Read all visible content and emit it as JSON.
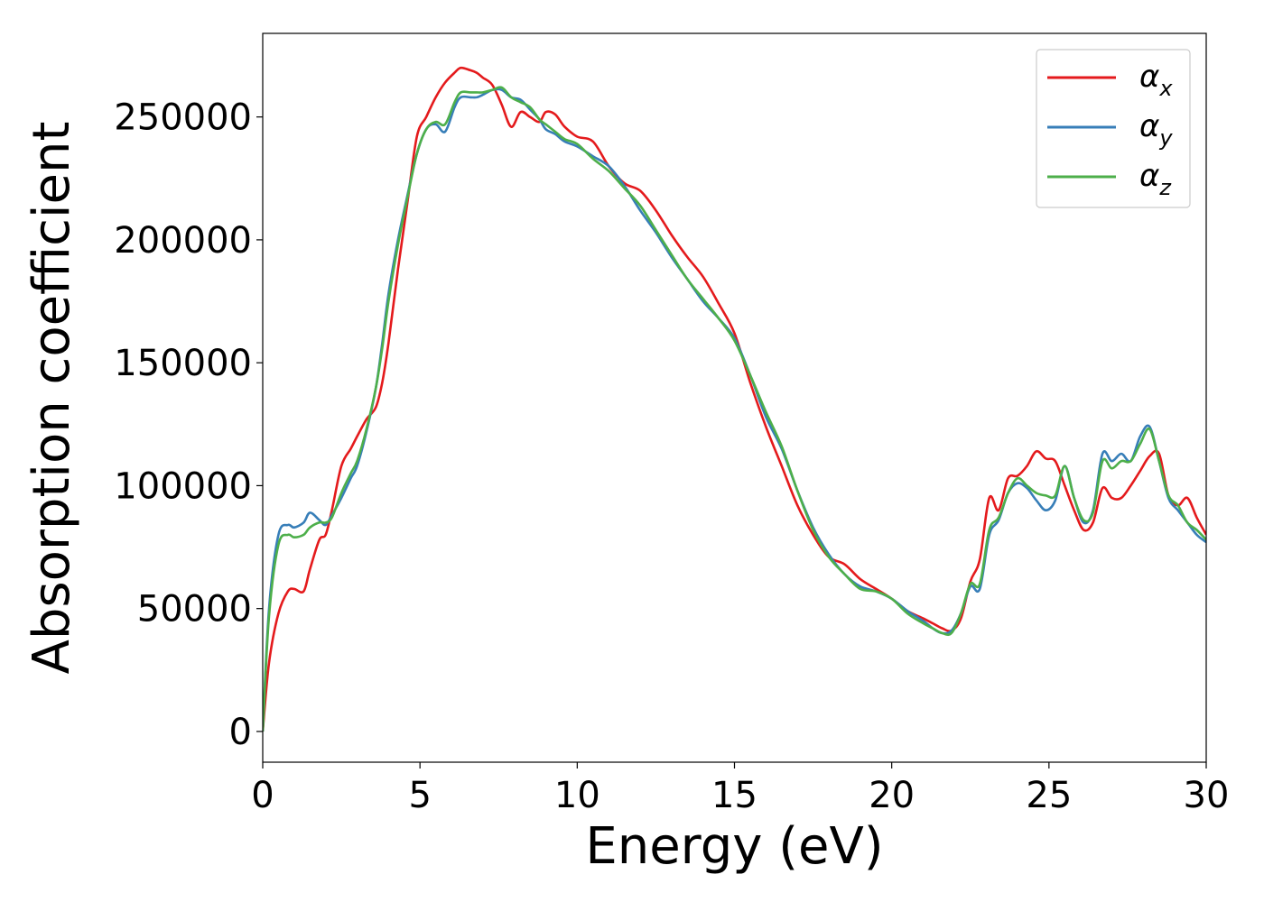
{
  "chart_data": {
    "type": "line",
    "title": "",
    "xlabel": "Energy (eV)",
    "ylabel": "Absorption coefficient",
    "xlim": [
      0,
      30
    ],
    "ylim": [
      -12500,
      284000
    ],
    "xticks": [
      {
        "value": 0,
        "label": "0"
      },
      {
        "value": 5,
        "label": "5"
      },
      {
        "value": 10,
        "label": "10"
      },
      {
        "value": 15,
        "label": "15"
      },
      {
        "value": 20,
        "label": "20"
      },
      {
        "value": 25,
        "label": "25"
      },
      {
        "value": 30,
        "label": "30"
      }
    ],
    "yticks": [
      {
        "value": 0,
        "label": "0"
      },
      {
        "value": 50000,
        "label": "50000"
      },
      {
        "value": 100000,
        "label": "100000"
      },
      {
        "value": 150000,
        "label": "150000"
      },
      {
        "value": 200000,
        "label": "200000"
      },
      {
        "value": 250000,
        "label": "250000"
      }
    ],
    "grid": false,
    "legend_position": "top-right",
    "series": [
      {
        "name": "αx",
        "base": "α",
        "sub": "x",
        "color": "#e41a1c",
        "x": [
          0,
          0.2,
          0.5,
          0.8,
          1.0,
          1.3,
          1.5,
          1.8,
          2.0,
          2.2,
          2.5,
          2.8,
          3.0,
          3.3,
          3.6,
          3.8,
          4.0,
          4.3,
          4.6,
          4.9,
          5.2,
          5.5,
          5.8,
          6.1,
          6.3,
          6.6,
          6.8,
          7.0,
          7.3,
          7.6,
          7.9,
          8.2,
          8.5,
          8.8,
          9.0,
          9.3,
          9.6,
          10.0,
          10.5,
          11.0,
          11.5,
          12.0,
          12.5,
          13.0,
          13.5,
          14.0,
          14.5,
          15.0,
          15.5,
          16.0,
          16.5,
          17.0,
          17.5,
          18.0,
          18.5,
          19.0,
          19.5,
          20.0,
          20.5,
          21.0,
          21.3,
          21.6,
          21.9,
          22.2,
          22.5,
          22.8,
          23.1,
          23.4,
          23.7,
          24.0,
          24.3,
          24.6,
          24.9,
          25.2,
          25.5,
          25.8,
          26.1,
          26.4,
          26.7,
          27.0,
          27.3,
          27.6,
          27.9,
          28.2,
          28.5,
          28.8,
          29.1,
          29.4,
          29.7,
          30.0
        ],
        "y": [
          0,
          28000,
          48000,
          57000,
          58000,
          57000,
          66000,
          78000,
          80000,
          90000,
          108000,
          115000,
          120000,
          127000,
          132000,
          142000,
          158000,
          188000,
          215000,
          242000,
          250000,
          258000,
          264000,
          268000,
          270000,
          269000,
          268000,
          266000,
          263000,
          255000,
          246000,
          252000,
          250000,
          248000,
          252000,
          251000,
          246000,
          242000,
          240000,
          230000,
          223000,
          220000,
          212000,
          202000,
          193000,
          185000,
          174000,
          162000,
          142000,
          124000,
          108000,
          92000,
          80000,
          71000,
          68000,
          62000,
          58000,
          54000,
          49000,
          46000,
          44000,
          42000,
          41000,
          46000,
          61000,
          70000,
          95000,
          90000,
          103000,
          104000,
          108000,
          114000,
          111000,
          110000,
          100000,
          90000,
          82000,
          85000,
          99000,
          95000,
          95000,
          100000,
          106000,
          112000,
          113000,
          96000,
          92000,
          95000,
          87000,
          80000
        ]
      },
      {
        "name": "αy",
        "base": "α",
        "sub": "y",
        "color": "#377eb8",
        "x": [
          0,
          0.2,
          0.5,
          0.8,
          1.0,
          1.3,
          1.5,
          1.8,
          2.0,
          2.2,
          2.5,
          2.8,
          3.0,
          3.3,
          3.6,
          3.8,
          4.0,
          4.3,
          4.6,
          4.9,
          5.2,
          5.5,
          5.8,
          6.1,
          6.3,
          6.6,
          6.8,
          7.0,
          7.3,
          7.6,
          7.9,
          8.2,
          8.5,
          8.8,
          9.0,
          9.3,
          9.6,
          10.0,
          10.5,
          11.0,
          11.5,
          12.0,
          12.5,
          13.0,
          13.5,
          14.0,
          14.5,
          15.0,
          15.5,
          16.0,
          16.5,
          17.0,
          17.5,
          18.0,
          18.5,
          19.0,
          19.5,
          20.0,
          20.5,
          21.0,
          21.3,
          21.6,
          21.9,
          22.2,
          22.5,
          22.8,
          23.1,
          23.4,
          23.7,
          24.0,
          24.3,
          24.6,
          24.9,
          25.2,
          25.5,
          25.8,
          26.1,
          26.4,
          26.7,
          27.0,
          27.3,
          27.6,
          27.9,
          28.2,
          28.5,
          28.8,
          29.1,
          29.4,
          29.7,
          30.0
        ],
        "y": [
          0,
          50000,
          80000,
          84000,
          83000,
          85000,
          89000,
          86000,
          84000,
          88000,
          95000,
          103000,
          108000,
          122000,
          140000,
          158000,
          178000,
          200000,
          218000,
          235000,
          245000,
          247000,
          244000,
          254000,
          258000,
          258000,
          258000,
          259000,
          261000,
          261000,
          258000,
          257000,
          253000,
          249000,
          245000,
          243000,
          240000,
          238000,
          234000,
          230000,
          222000,
          212000,
          203000,
          193000,
          184000,
          175000,
          168000,
          160000,
          145000,
          128000,
          115000,
          98000,
          83000,
          72000,
          64000,
          59000,
          57000,
          54000,
          49000,
          45000,
          42000,
          40000,
          41000,
          48000,
          59000,
          58000,
          80000,
          86000,
          97000,
          101000,
          99000,
          94000,
          90000,
          94000,
          108000,
          95000,
          85000,
          90000,
          113000,
          110000,
          113000,
          110000,
          120000,
          124000,
          110000,
          95000,
          90000,
          85000,
          80000,
          77000
        ]
      },
      {
        "name": "αz",
        "base": "α",
        "sub": "z",
        "color": "#4daf4a",
        "x": [
          0,
          0.2,
          0.5,
          0.8,
          1.0,
          1.3,
          1.5,
          1.8,
          2.0,
          2.2,
          2.5,
          2.8,
          3.0,
          3.3,
          3.6,
          3.8,
          4.0,
          4.3,
          4.6,
          4.9,
          5.2,
          5.5,
          5.8,
          6.1,
          6.3,
          6.6,
          6.8,
          7.0,
          7.3,
          7.6,
          7.9,
          8.2,
          8.5,
          8.8,
          9.0,
          9.3,
          9.6,
          10.0,
          10.5,
          11.0,
          11.5,
          12.0,
          12.5,
          13.0,
          13.5,
          14.0,
          14.5,
          15.0,
          15.5,
          16.0,
          16.5,
          17.0,
          17.5,
          18.0,
          18.5,
          19.0,
          19.5,
          20.0,
          20.5,
          21.0,
          21.3,
          21.6,
          21.9,
          22.2,
          22.5,
          22.8,
          23.1,
          23.4,
          23.7,
          24.0,
          24.3,
          24.6,
          24.9,
          25.2,
          25.5,
          25.8,
          26.1,
          26.4,
          26.7,
          27.0,
          27.3,
          27.6,
          27.9,
          28.2,
          28.5,
          28.8,
          29.1,
          29.4,
          29.7,
          30.0
        ],
        "y": [
          0,
          47000,
          76000,
          80000,
          79000,
          80000,
          83000,
          85000,
          85000,
          87000,
          97000,
          105000,
          110000,
          123000,
          140000,
          156000,
          175000,
          198000,
          217000,
          235000,
          245000,
          248000,
          247000,
          256000,
          260000,
          260000,
          260000,
          260000,
          261000,
          262000,
          258000,
          256000,
          254000,
          249000,
          247000,
          244000,
          241000,
          239000,
          233000,
          228000,
          221000,
          214000,
          204000,
          194000,
          184000,
          176000,
          168000,
          159000,
          145000,
          130000,
          116000,
          98000,
          82000,
          71000,
          64000,
          58000,
          57000,
          54000,
          48000,
          44000,
          42000,
          40000,
          40000,
          48000,
          60000,
          60000,
          82000,
          87000,
          97000,
          103000,
          100000,
          97000,
          96000,
          96000,
          108000,
          95000,
          86000,
          89000,
          110000,
          107000,
          110000,
          110000,
          117000,
          123000,
          110000,
          96000,
          92000,
          85000,
          82000,
          78000
        ]
      }
    ]
  }
}
